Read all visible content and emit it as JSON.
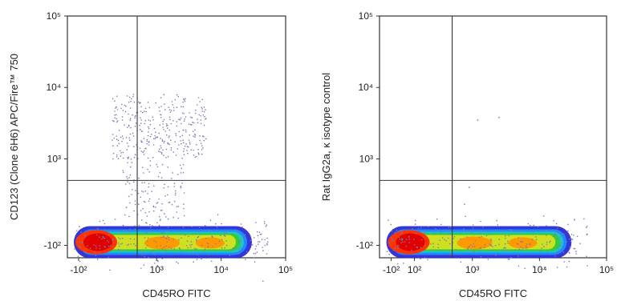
{
  "chart_data": [
    {
      "type": "scatter",
      "subtype": "flow-cytometry-density-plot",
      "xlabel": "CD45RO FITC",
      "ylabel": "CD123 (Clone 6H6) APC/Fire™ 750",
      "x_scale": "biexponential",
      "y_scale": "biexponential",
      "x_ticks": [
        "-10²",
        "10³",
        "10⁴",
        "10⁵"
      ],
      "y_ticks": [
        "10⁵",
        "10⁴",
        "10³",
        "-10²"
      ],
      "xlim": [
        "-10^2",
        "10^5"
      ],
      "ylim": [
        "-10^2",
        "10^5"
      ],
      "gate": {
        "x": 500,
        "y": 500
      },
      "populations": [
        {
          "x_range": [
            -100,
            30000
          ],
          "y_center": -100,
          "density": "high"
        },
        {
          "x_range": [
            200,
            6000
          ],
          "y_range": [
            1000,
            8000
          ],
          "density": "low"
        }
      ]
    },
    {
      "type": "scatter",
      "subtype": "flow-cytometry-density-plot",
      "xlabel": "CD45RO FITC",
      "ylabel": "Rat IgG2a, κ isotype control",
      "x_scale": "biexponential",
      "y_scale": "biexponential",
      "x_ticks": [
        "-10²",
        "10²",
        "10³",
        "10⁴",
        "10⁵"
      ],
      "y_ticks": [
        "10⁵",
        "10⁴",
        "10³",
        "-10²"
      ],
      "xlim": [
        "-10^2",
        "10^5"
      ],
      "ylim": [
        "-10^2",
        "10^5"
      ],
      "gate": {
        "x": 500,
        "y": 500
      },
      "populations": [
        {
          "x_range": [
            -100,
            30000
          ],
          "y_center": -100,
          "density": "high"
        }
      ]
    }
  ],
  "colors": {
    "density_scale": [
      "#2b2bd6",
      "#1e90ff",
      "#20c8c8",
      "#33cc33",
      "#d8e020",
      "#ff9900",
      "#ff3300",
      "#e00000"
    ],
    "sparse_dots": "#7a7ab8"
  }
}
